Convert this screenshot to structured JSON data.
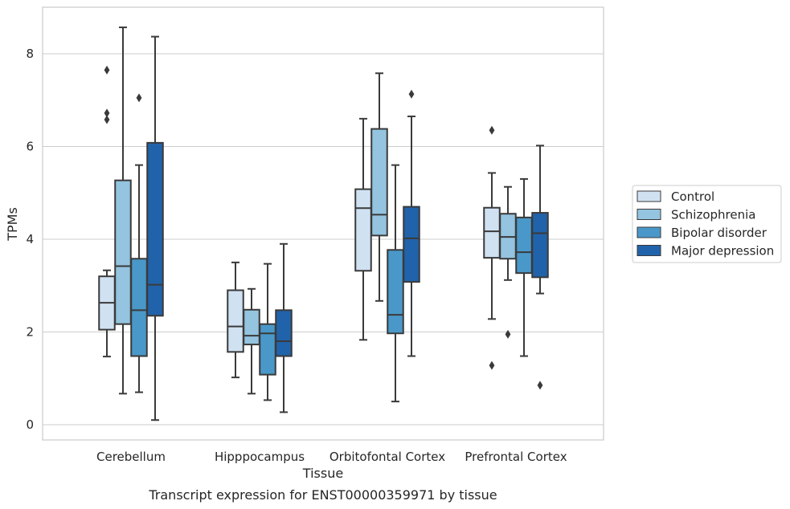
{
  "caption": "Transcript expression for ENST00000359971 by tissue",
  "chart_data": {
    "type": "box",
    "xlabel": "Tissue",
    "ylabel": "TPMs",
    "ylim": [
      -0.3,
      9.0
    ],
    "yticks": [
      0,
      2,
      4,
      6,
      8
    ],
    "ytick_labels": [
      "0",
      "2",
      "4",
      "6",
      "8"
    ],
    "grid": "horizontal",
    "legend_position": "right",
    "categories": [
      "Cerebellum",
      "Hipppocampus",
      "Orbitofontal Cortex",
      "Prefrontal Cortex"
    ],
    "series": [
      {
        "name": "Control",
        "color": "#d0e1f2",
        "boxes": [
          {
            "whislo": 1.47,
            "q1": 2.05,
            "med": 2.63,
            "q3": 3.2,
            "whishi": 3.33,
            "fliers": [
              7.65,
              6.72,
              6.58
            ]
          },
          {
            "whislo": 1.02,
            "q1": 1.57,
            "med": 2.12,
            "q3": 2.9,
            "whishi": 3.5,
            "fliers": []
          },
          {
            "whislo": 1.83,
            "q1": 3.32,
            "med": 4.67,
            "q3": 5.08,
            "whishi": 6.6,
            "fliers": []
          },
          {
            "whislo": 2.28,
            "q1": 3.6,
            "med": 4.17,
            "q3": 4.68,
            "whishi": 5.43,
            "fliers": [
              6.35,
              1.28
            ]
          }
        ]
      },
      {
        "name": "Schizophrenia",
        "color": "#94c4df",
        "boxes": [
          {
            "whislo": 0.67,
            "q1": 2.17,
            "med": 3.42,
            "q3": 5.27,
            "whishi": 8.57,
            "fliers": []
          },
          {
            "whislo": 0.67,
            "q1": 1.73,
            "med": 1.92,
            "q3": 2.48,
            "whishi": 2.93,
            "fliers": []
          },
          {
            "whislo": 2.67,
            "q1": 4.08,
            "med": 4.53,
            "q3": 6.38,
            "whishi": 7.58,
            "fliers": []
          },
          {
            "whislo": 3.12,
            "q1": 3.58,
            "med": 4.05,
            "q3": 4.55,
            "whishi": 5.13,
            "fliers": [
              1.95
            ]
          }
        ]
      },
      {
        "name": "Bipolar disorder",
        "color": "#4a98c9",
        "boxes": [
          {
            "whislo": 0.7,
            "q1": 1.48,
            "med": 2.47,
            "q3": 3.58,
            "whishi": 5.6,
            "fliers": [
              7.05
            ]
          },
          {
            "whislo": 0.53,
            "q1": 1.08,
            "med": 1.97,
            "q3": 2.17,
            "whishi": 3.47,
            "fliers": []
          },
          {
            "whislo": 0.5,
            "q1": 1.97,
            "med": 2.37,
            "q3": 3.77,
            "whishi": 5.6,
            "fliers": []
          },
          {
            "whislo": 1.48,
            "q1": 3.27,
            "med": 3.72,
            "q3": 4.47,
            "whishi": 5.3,
            "fliers": []
          }
        ]
      },
      {
        "name": "Major depression",
        "color": "#2163aa",
        "boxes": [
          {
            "whislo": 0.1,
            "q1": 2.35,
            "med": 3.02,
            "q3": 6.08,
            "whishi": 8.37,
            "fliers": []
          },
          {
            "whislo": 0.27,
            "q1": 1.48,
            "med": 1.8,
            "q3": 2.47,
            "whishi": 3.9,
            "fliers": []
          },
          {
            "whislo": 1.48,
            "q1": 3.08,
            "med": 4.02,
            "q3": 4.7,
            "whishi": 6.65,
            "fliers": [
              7.13
            ]
          },
          {
            "whislo": 2.83,
            "q1": 3.18,
            "med": 4.13,
            "q3": 4.57,
            "whishi": 6.02,
            "fliers": [
              0.85
            ]
          }
        ]
      }
    ]
  }
}
